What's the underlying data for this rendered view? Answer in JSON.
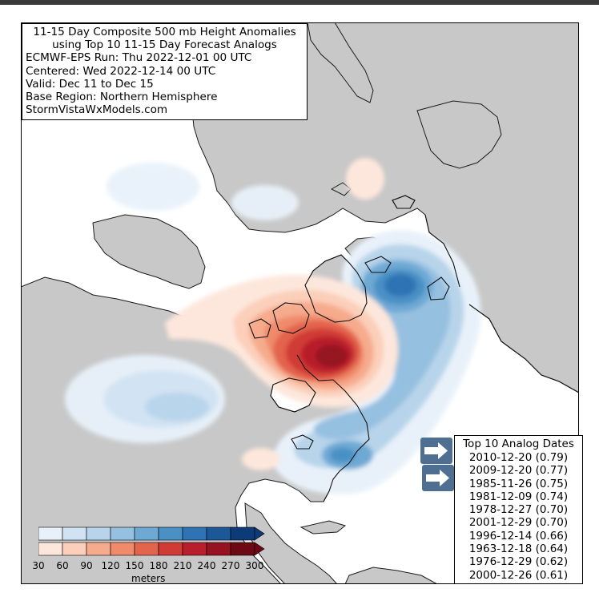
{
  "title": {
    "line1": "11-15 Day Composite 500 mb Height Anomalies",
    "line2": "using Top 10 11-15 Day Forecast Analogs",
    "run": "ECMWF-EPS Run: Thu 2022-12-01 00 UTC",
    "centered": "Centered: Wed 2022-12-14 00 UTC",
    "valid": "Valid: Dec 11 to Dec 15",
    "base_region": "Base Region: Northern Hemisphere",
    "source": "StormVistaWxModels.com"
  },
  "analogs": {
    "header": "Top 10 Analog Dates",
    "rows": [
      "2010-12-20 (0.79)",
      "2009-12-20 (0.77)",
      "1985-11-26 (0.75)",
      "1981-12-09 (0.74)",
      "1978-12-27 (0.70)",
      "2001-12-29 (0.70)",
      "1996-12-14 (0.66)",
      "1963-12-18 (0.64)",
      "1976-12-29 (0.62)",
      "2000-12-26 (0.61)"
    ]
  },
  "colorbar": {
    "ticks": [
      "30",
      "60",
      "90",
      "120",
      "150",
      "180",
      "210",
      "240",
      "270",
      "300"
    ],
    "unit": "meters",
    "negative_colors": [
      "#e8f1fa",
      "#d1e3f3",
      "#b7d4ea",
      "#96c0e0",
      "#6ea9d4",
      "#4a90c5",
      "#2f73b4",
      "#1c5797",
      "#0d3b78"
    ],
    "positive_colors": [
      "#fde7dc",
      "#fbcfba",
      "#f6ab8d",
      "#ef8a6b",
      "#e3644d",
      "#d03b35",
      "#b81e2b",
      "#961221",
      "#6c0915"
    ]
  },
  "land_color": "#c8c8c8",
  "nav_arrows": [
    "arrow-right-icon",
    "arrow-right-icon"
  ]
}
